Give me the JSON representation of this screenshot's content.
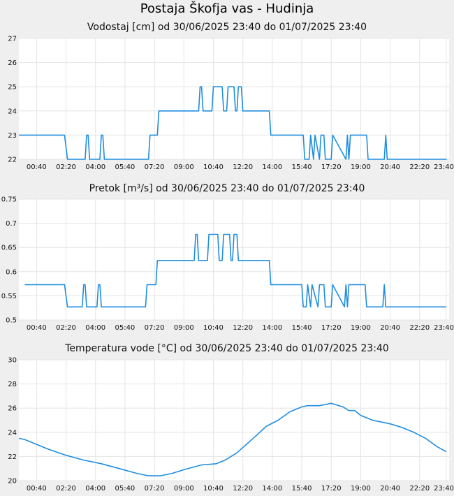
{
  "station_title": "Postaja Škofja vas - Hudinja",
  "chart_data": [
    {
      "type": "line",
      "title": "Vodostaj [cm] od 30/06/2025 23:40 do 01/07/2025 23:40",
      "xlabel": "",
      "ylabel": "",
      "xlim": [
        0,
        1460
      ],
      "ylim": [
        22,
        27
      ],
      "yticks": [
        22,
        23,
        24,
        25,
        26,
        27
      ],
      "ytick_labels": [
        "22",
        "23",
        "24",
        "25",
        "26",
        "27"
      ],
      "xticks": [
        60,
        160,
        260,
        360,
        460,
        560,
        660,
        760,
        860,
        960,
        1060,
        1160,
        1260,
        1360,
        1450
      ],
      "xtick_labels": [
        "00:40",
        "02:20",
        "04:00",
        "05:40",
        "07:20",
        "09:00",
        "10:40",
        "12:20",
        "14:00",
        "15:40",
        "17:20",
        "19:00",
        "20:40",
        "22:20",
        "23:40"
      ],
      "grid": true,
      "line_color": "#1f8de0",
      "series": [
        {
          "x": [
            0,
            155,
            165,
            225,
            230,
            235,
            240,
            275,
            280,
            285,
            290,
            440,
            445,
            470,
            475,
            490,
            495,
            610,
            615,
            620,
            625,
            655,
            660,
            690,
            695,
            705,
            710,
            730,
            735,
            740,
            745,
            755,
            760,
            775,
            780,
            850,
            855,
            965,
            970,
            985,
            990,
            1000,
            1005,
            1020,
            1025,
            1035,
            1040,
            1060,
            1065,
            1110,
            1115,
            1120,
            1125,
            1180,
            1185,
            1240,
            1245,
            1250,
            1255,
            1452
          ],
          "y": [
            23,
            23,
            22,
            22,
            23,
            23,
            22,
            22,
            23,
            23,
            22,
            22,
            23,
            23,
            24,
            24,
            24,
            24,
            25,
            25,
            24,
            24,
            25,
            25,
            24,
            24,
            25,
            25,
            24,
            24,
            25,
            25,
            24,
            24,
            24,
            24,
            23,
            23,
            22,
            22,
            23,
            22,
            23,
            22,
            23,
            23,
            22,
            22,
            23,
            22,
            23,
            22,
            23,
            23,
            22,
            22,
            23,
            22,
            22,
            22
          ]
        }
      ]
    },
    {
      "type": "line",
      "title": "Pretok [m³/s] od 30/06/2025 23:40 do 01/07/2025 23:40",
      "xlabel": "",
      "ylabel": "",
      "xlim": [
        0,
        1460
      ],
      "ylim": [
        0.5,
        0.75
      ],
      "yticks": [
        0.5,
        0.55,
        0.6,
        0.65,
        0.7,
        0.75
      ],
      "ytick_labels": [
        "0.5",
        "0.55",
        "0.6",
        "0.65",
        "0.7",
        "0.75"
      ],
      "xticks": [
        60,
        160,
        260,
        360,
        460,
        560,
        660,
        760,
        860,
        960,
        1060,
        1160,
        1260,
        1360,
        1450
      ],
      "xtick_labels": [
        "00:40",
        "02:20",
        "04:00",
        "05:40",
        "07:20",
        "09:00",
        "10:40",
        "12:20",
        "14:00",
        "15:40",
        "17:20",
        "19:00",
        "20:40",
        "22:20",
        "23:40"
      ],
      "grid": true,
      "line_color": "#1f8de0",
      "series": [
        {
          "x": [
            20,
            155,
            165,
            215,
            220,
            225,
            230,
            265,
            270,
            275,
            280,
            430,
            435,
            465,
            470,
            480,
            485,
            595,
            600,
            605,
            610,
            640,
            645,
            675,
            680,
            690,
            695,
            715,
            720,
            725,
            730,
            740,
            745,
            760,
            765,
            850,
            855,
            960,
            965,
            975,
            980,
            990,
            995,
            1015,
            1020,
            1035,
            1040,
            1060,
            1065,
            1105,
            1110,
            1115,
            1120,
            1175,
            1180,
            1235,
            1240,
            1245,
            1250,
            1450
          ],
          "y": [
            0.573,
            0.573,
            0.527,
            0.527,
            0.573,
            0.573,
            0.527,
            0.527,
            0.573,
            0.573,
            0.527,
            0.527,
            0.573,
            0.573,
            0.623,
            0.623,
            0.623,
            0.623,
            0.677,
            0.677,
            0.623,
            0.623,
            0.677,
            0.677,
            0.623,
            0.623,
            0.677,
            0.677,
            0.623,
            0.623,
            0.677,
            0.677,
            0.623,
            0.623,
            0.623,
            0.623,
            0.573,
            0.573,
            0.527,
            0.527,
            0.573,
            0.527,
            0.573,
            0.527,
            0.573,
            0.573,
            0.527,
            0.527,
            0.573,
            0.527,
            0.573,
            0.527,
            0.573,
            0.573,
            0.527,
            0.527,
            0.573,
            0.527,
            0.527,
            0.527
          ]
        }
      ]
    },
    {
      "type": "line",
      "title": "Temperatura vode [°C] od 30/06/2025 23:40 do 01/07/2025 23:40",
      "xlabel": "",
      "ylabel": "",
      "xlim": [
        0,
        1460
      ],
      "ylim": [
        20,
        30
      ],
      "yticks": [
        20,
        22,
        24,
        26,
        28,
        30
      ],
      "ytick_labels": [
        "20",
        "22",
        "24",
        "26",
        "28",
        "30"
      ],
      "xticks": [
        60,
        160,
        260,
        360,
        460,
        560,
        660,
        760,
        860,
        960,
        1060,
        1160,
        1260,
        1360,
        1450
      ],
      "xtick_labels": [
        "00:40",
        "02:20",
        "04:00",
        "05:40",
        "07:20",
        "09:00",
        "10:40",
        "12:20",
        "14:00",
        "15:40",
        "17:20",
        "19:00",
        "20:40",
        "22:20",
        "23:40"
      ],
      "grid": true,
      "line_color": "#1f8de0",
      "series": [
        {
          "x": [
            0,
            20,
            60,
            100,
            160,
            220,
            280,
            340,
            400,
            440,
            480,
            520,
            560,
            620,
            670,
            700,
            740,
            800,
            840,
            880,
            920,
            960,
            980,
            1020,
            1060,
            1100,
            1120,
            1140,
            1160,
            1200,
            1220,
            1260,
            1300,
            1340,
            1380,
            1420,
            1450
          ],
          "y": [
            23.5,
            23.4,
            23.0,
            22.6,
            22.1,
            21.7,
            21.4,
            21.0,
            20.6,
            20.4,
            20.4,
            20.6,
            20.9,
            21.3,
            21.4,
            21.7,
            22.3,
            23.6,
            24.5,
            25.0,
            25.7,
            26.1,
            26.2,
            26.2,
            26.4,
            26.1,
            25.8,
            25.8,
            25.4,
            25.0,
            24.9,
            24.7,
            24.4,
            24.0,
            23.5,
            22.8,
            22.4
          ]
        }
      ]
    }
  ]
}
